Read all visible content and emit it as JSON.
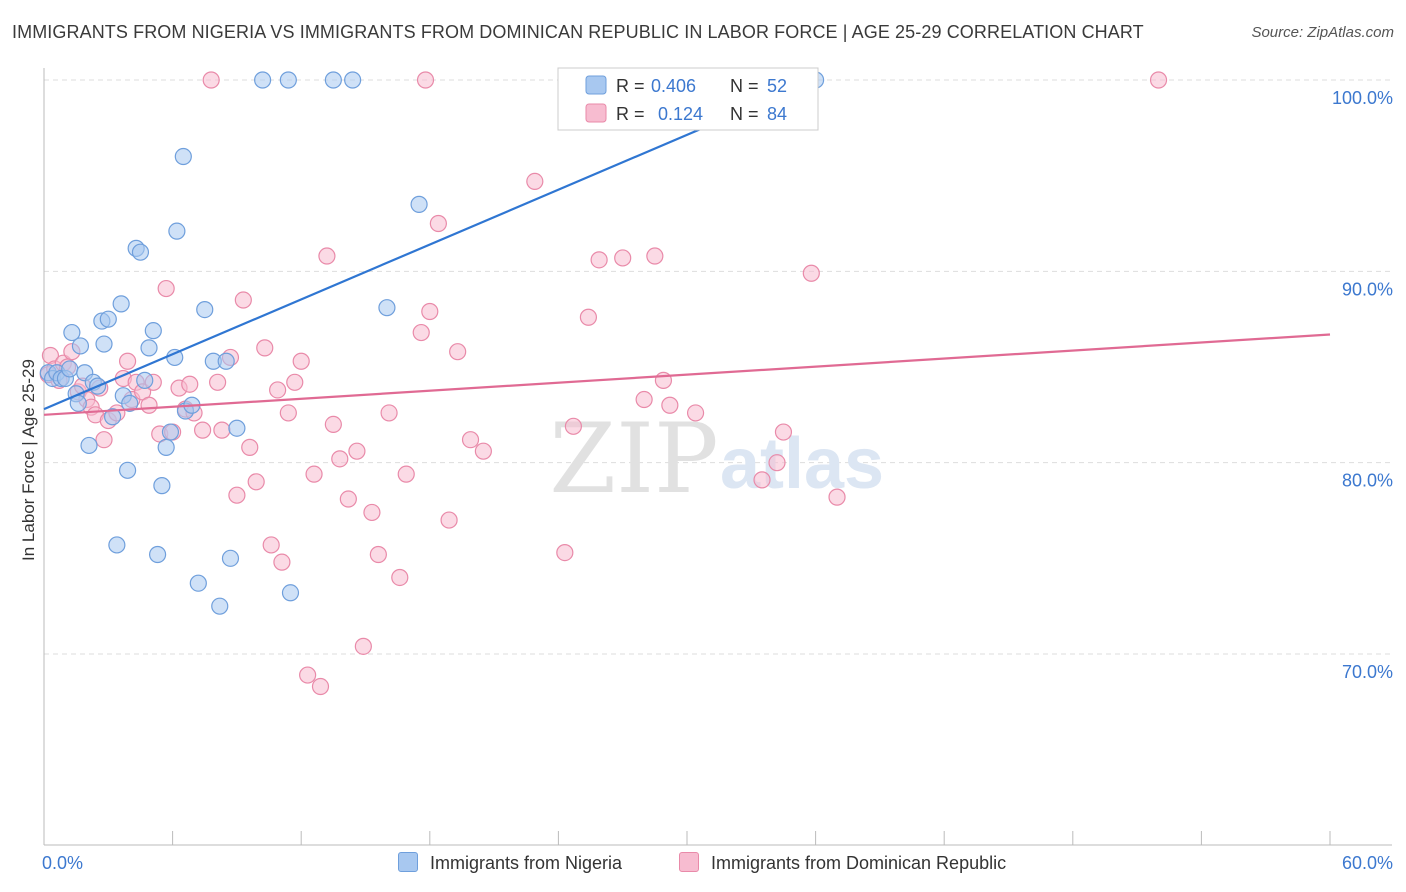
{
  "title": "IMMIGRANTS FROM NIGERIA VS IMMIGRANTS FROM DOMINICAN REPUBLIC IN LABOR FORCE | AGE 25-29 CORRELATION CHART",
  "source": "Source: ZipAtlas.com",
  "watermark": {
    "zip": "ZIP",
    "atlas": "atlas"
  },
  "legend": {
    "r_label": "R =",
    "n_label": "N =",
    "entries": [
      {
        "r": "0.406",
        "n": "52"
      },
      {
        "r": "0.124",
        "n": "84"
      }
    ]
  },
  "colors": {
    "nigeria_fill": "#a8c8f0",
    "nigeria_stroke": "#6f9fdc",
    "nigeria_line": "#2f76d2",
    "dominican_fill": "#f7bcd0",
    "dominican_stroke": "#e98aa9",
    "dominican_line": "#e06a93",
    "value_text": "#3c78cf",
    "grid": "#dddddd"
  },
  "chart_data": {
    "type": "scatter",
    "title": "IMMIGRANTS FROM NIGERIA VS IMMIGRANTS FROM DOMINICAN REPUBLIC IN LABOR FORCE | AGE 25-29 CORRELATION CHART",
    "xlabel": "",
    "ylabel": "In Labor Force | Age 25-29",
    "xlim": [
      0,
      60
    ],
    "ylim": [
      61.5,
      101
    ],
    "x_tick_labels": [
      {
        "value": 0,
        "label": "0.0%"
      },
      {
        "value": 60,
        "label": "60.0%"
      }
    ],
    "y_tick_labels": [
      {
        "value": 100,
        "label": "100.0%"
      },
      {
        "value": 90,
        "label": "90.0%"
      },
      {
        "value": 80,
        "label": "80.0%"
      },
      {
        "value": 70,
        "label": "70.0%"
      }
    ],
    "series": [
      {
        "name": "Immigrants from Nigeria",
        "r": 0.406,
        "n": 52,
        "trend": {
          "x": [
            0,
            36
          ],
          "y": [
            82.8,
            100
          ]
        },
        "points": [
          [
            0.2,
            84.7
          ],
          [
            0.4,
            84.4
          ],
          [
            0.6,
            84.7
          ],
          [
            0.8,
            84.4
          ],
          [
            1.0,
            84.4
          ],
          [
            1.2,
            84.9
          ],
          [
            1.3,
            86.8
          ],
          [
            1.5,
            83.6
          ],
          [
            1.6,
            83.1
          ],
          [
            1.7,
            86.1
          ],
          [
            1.9,
            84.7
          ],
          [
            2.1,
            80.9
          ],
          [
            2.3,
            84.2
          ],
          [
            2.5,
            84.0
          ],
          [
            2.7,
            87.4
          ],
          [
            2.8,
            86.2
          ],
          [
            3.0,
            87.5
          ],
          [
            3.2,
            82.4
          ],
          [
            3.4,
            75.7
          ],
          [
            3.6,
            88.3
          ],
          [
            3.7,
            83.5
          ],
          [
            3.9,
            79.6
          ],
          [
            4.0,
            83.1
          ],
          [
            4.3,
            91.2
          ],
          [
            4.5,
            91.0
          ],
          [
            4.7,
            84.3
          ],
          [
            4.9,
            86.0
          ],
          [
            5.1,
            86.9
          ],
          [
            5.3,
            75.2
          ],
          [
            5.5,
            78.8
          ],
          [
            5.7,
            80.8
          ],
          [
            5.9,
            81.6
          ],
          [
            6.1,
            85.5
          ],
          [
            6.2,
            92.1
          ],
          [
            6.5,
            96.0
          ],
          [
            6.6,
            82.7
          ],
          [
            6.9,
            83.0
          ],
          [
            7.2,
            73.7
          ],
          [
            7.5,
            88.0
          ],
          [
            7.9,
            85.3
          ],
          [
            8.2,
            72.5
          ],
          [
            8.5,
            85.3
          ],
          [
            8.7,
            75.0
          ],
          [
            9.0,
            81.8
          ],
          [
            10.2,
            100.0
          ],
          [
            11.4,
            100.0
          ],
          [
            11.5,
            73.2
          ],
          [
            13.5,
            100.0
          ],
          [
            14.4,
            100.0
          ],
          [
            16.0,
            88.1
          ],
          [
            17.5,
            93.5
          ],
          [
            36.0,
            100.0
          ]
        ]
      },
      {
        "name": "Immigrants from Dominican Republic",
        "r": 0.124,
        "n": 84,
        "trend": {
          "x": [
            0,
            60
          ],
          "y": [
            82.5,
            86.7
          ]
        },
        "points": [
          [
            0.2,
            84.6
          ],
          [
            0.3,
            85.6
          ],
          [
            0.5,
            84.9
          ],
          [
            0.7,
            84.3
          ],
          [
            0.9,
            85.2
          ],
          [
            1.1,
            85.0
          ],
          [
            1.3,
            85.8
          ],
          [
            1.6,
            83.7
          ],
          [
            1.8,
            84.0
          ],
          [
            2.0,
            83.3
          ],
          [
            2.2,
            82.9
          ],
          [
            2.4,
            82.5
          ],
          [
            2.6,
            83.9
          ],
          [
            2.8,
            81.2
          ],
          [
            3.0,
            82.2
          ],
          [
            3.4,
            82.6
          ],
          [
            3.7,
            84.4
          ],
          [
            3.9,
            85.3
          ],
          [
            4.1,
            83.3
          ],
          [
            4.3,
            84.2
          ],
          [
            4.6,
            83.7
          ],
          [
            4.9,
            83.0
          ],
          [
            5.1,
            84.2
          ],
          [
            5.4,
            81.5
          ],
          [
            5.7,
            89.1
          ],
          [
            6.0,
            81.6
          ],
          [
            6.3,
            83.9
          ],
          [
            6.6,
            82.8
          ],
          [
            6.8,
            84.1
          ],
          [
            7.0,
            82.6
          ],
          [
            7.4,
            81.7
          ],
          [
            7.8,
            100.0
          ],
          [
            8.1,
            84.2
          ],
          [
            8.3,
            81.7
          ],
          [
            8.7,
            85.5
          ],
          [
            9.0,
            78.3
          ],
          [
            9.3,
            88.5
          ],
          [
            9.6,
            80.8
          ],
          [
            9.9,
            79.0
          ],
          [
            10.3,
            86.0
          ],
          [
            10.6,
            75.7
          ],
          [
            10.9,
            83.8
          ],
          [
            11.1,
            74.8
          ],
          [
            11.4,
            82.6
          ],
          [
            11.7,
            84.2
          ],
          [
            12.0,
            85.3
          ],
          [
            12.3,
            68.9
          ],
          [
            12.6,
            79.4
          ],
          [
            12.9,
            68.3
          ],
          [
            13.2,
            90.8
          ],
          [
            13.5,
            82.0
          ],
          [
            13.8,
            80.2
          ],
          [
            14.2,
            78.1
          ],
          [
            14.6,
            80.6
          ],
          [
            14.9,
            70.4
          ],
          [
            15.3,
            77.4
          ],
          [
            15.6,
            75.2
          ],
          [
            16.1,
            82.6
          ],
          [
            16.6,
            74.0
          ],
          [
            16.9,
            79.4
          ],
          [
            17.6,
            86.8
          ],
          [
            17.8,
            100.0
          ],
          [
            18.0,
            87.9
          ],
          [
            18.4,
            92.5
          ],
          [
            18.9,
            77.0
          ],
          [
            19.3,
            85.8
          ],
          [
            19.9,
            81.2
          ],
          [
            20.5,
            80.6
          ],
          [
            22.9,
            94.7
          ],
          [
            24.3,
            75.3
          ],
          [
            24.7,
            81.9
          ],
          [
            25.4,
            87.6
          ],
          [
            25.9,
            90.6
          ],
          [
            27.0,
            90.7
          ],
          [
            28.0,
            83.3
          ],
          [
            28.5,
            90.8
          ],
          [
            28.9,
            84.3
          ],
          [
            29.2,
            83.0
          ],
          [
            30.4,
            82.6
          ],
          [
            33.5,
            79.1
          ],
          [
            34.2,
            80.0
          ],
          [
            34.5,
            81.6
          ],
          [
            35.8,
            89.9
          ],
          [
            37.0,
            78.2
          ],
          [
            52.0,
            100.0
          ]
        ]
      }
    ]
  }
}
